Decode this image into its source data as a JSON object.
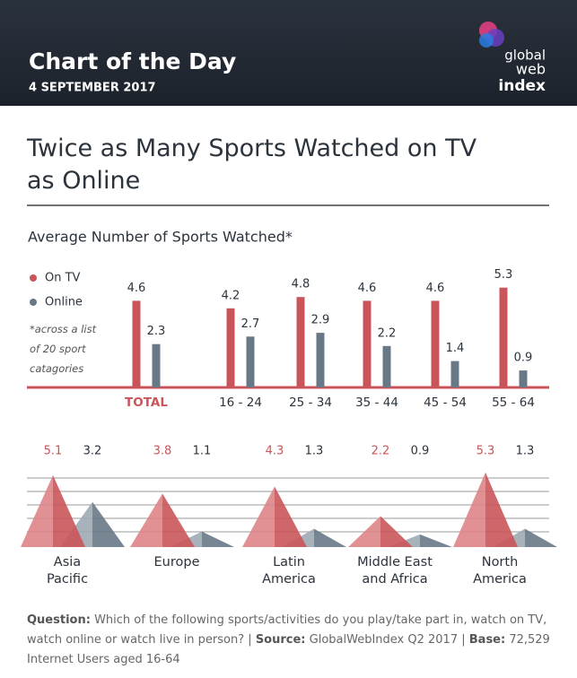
{
  "header": {
    "title": "Chart of the Day",
    "date": "4 SEPTEMBER 2017",
    "logo": [
      "global",
      "web",
      "index"
    ]
  },
  "headline": "Twice as Many Sports Watched on TV as Online",
  "chart_data": [
    {
      "type": "bar",
      "title": "Average Number of Sports Watched*",
      "note": "*across a list\nof 20 sport\ncatagories",
      "categories": [
        "TOTAL",
        "16 - 24",
        "25 - 34",
        "35 - 44",
        "45 - 54",
        "55 - 64"
      ],
      "series": [
        {
          "name": "On TV",
          "color": "#c9555a",
          "values": [
            4.6,
            4.2,
            4.8,
            4.6,
            4.6,
            5.3
          ]
        },
        {
          "name": "Online",
          "color": "#687886",
          "values": [
            2.3,
            2.7,
            2.9,
            2.2,
            1.4,
            0.9
          ]
        }
      ]
    },
    {
      "type": "triangle",
      "categories": [
        "Asia\nPacific",
        "Europe",
        "Latin\nAmerica",
        "Middle East\nand Africa",
        "North\nAmerica"
      ],
      "series": [
        {
          "color": "#c9555a",
          "values": [
            5.1,
            3.8,
            4.3,
            2.2,
            5.3
          ]
        },
        {
          "color": "#687886",
          "values": [
            3.2,
            1.1,
            1.3,
            0.9,
            1.3
          ]
        }
      ]
    }
  ],
  "footer": {
    "question_label": "Question:",
    "question": "Which of the following sports/activities do you play/take part in, watch on TV, watch online or watch live in person?",
    "separator": "|",
    "source_label": "Source:",
    "source": "GlobalWebIndex Q2 2017",
    "base_label": "Base:",
    "base": "72,529 Internet Users aged 16-64"
  }
}
